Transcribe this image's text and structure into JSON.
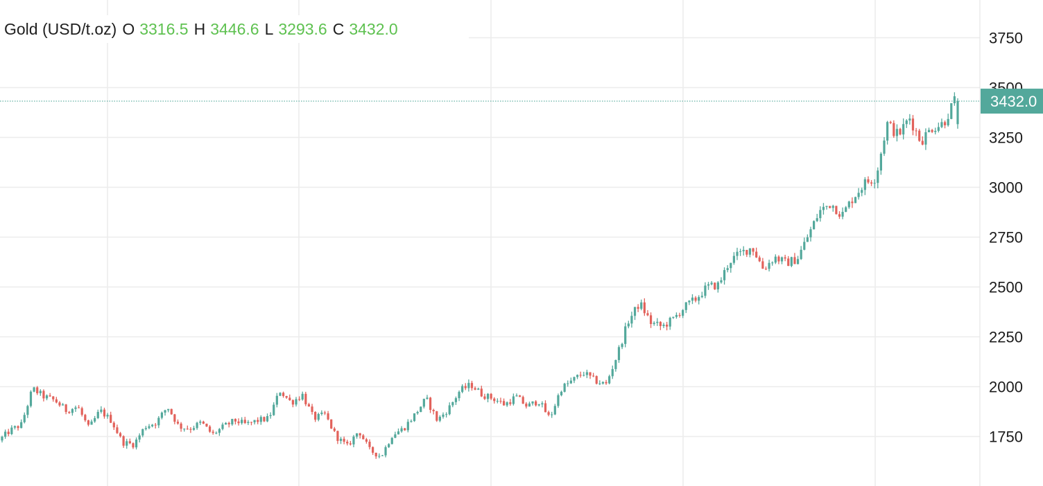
{
  "legend": {
    "symbol": "Gold (USD/t.oz)",
    "open_key": "O",
    "open": "3316.5",
    "high_key": "H",
    "high": "3446.6",
    "low_key": "L",
    "low": "3293.6",
    "close_key": "C",
    "close": "3432.0"
  },
  "last_price_label": "3432.0",
  "colors": {
    "up": "#53a89b",
    "down": "#e2625b",
    "legend_value": "#5ec150",
    "grid": "#ececec"
  },
  "chart_data": {
    "type": "candlestick",
    "title": "Gold (USD/t.oz)",
    "ylim": [
      1570,
      3940
    ],
    "y_ticks": [
      1750,
      2000,
      2250,
      2500,
      2750,
      3000,
      3250,
      3500,
      3750
    ],
    "last_close": 3432.0,
    "last_bar": {
      "open": 3316.5,
      "high": 3446.6,
      "low": 3293.6,
      "close": 3432.0
    },
    "anchors": [
      1730,
      1780,
      1810,
      1990,
      1950,
      1930,
      1880,
      1900,
      1790,
      1880,
      1830,
      1720,
      1710,
      1800,
      1820,
      1900,
      1800,
      1790,
      1820,
      1760,
      1800,
      1830,
      1810,
      1830,
      1840,
      1980,
      1920,
      1960,
      1840,
      1860,
      1750,
      1700,
      1780,
      1680,
      1650,
      1760,
      1790,
      1860,
      1940,
      1830,
      1890,
      1980,
      2010,
      1960,
      1940,
      1910,
      1950,
      1900,
      1930,
      1840,
      1990,
      2030,
      2070,
      2030,
      2010,
      2160,
      2330,
      2420,
      2320,
      2300,
      2340,
      2400,
      2440,
      2500,
      2510,
      2630,
      2670,
      2700,
      2590,
      2650,
      2620,
      2640,
      2760,
      2880,
      2920,
      2860,
      2950,
      3020,
      3050,
      3320,
      3260,
      3350,
      3230,
      3300,
      3320,
      3432
    ]
  }
}
